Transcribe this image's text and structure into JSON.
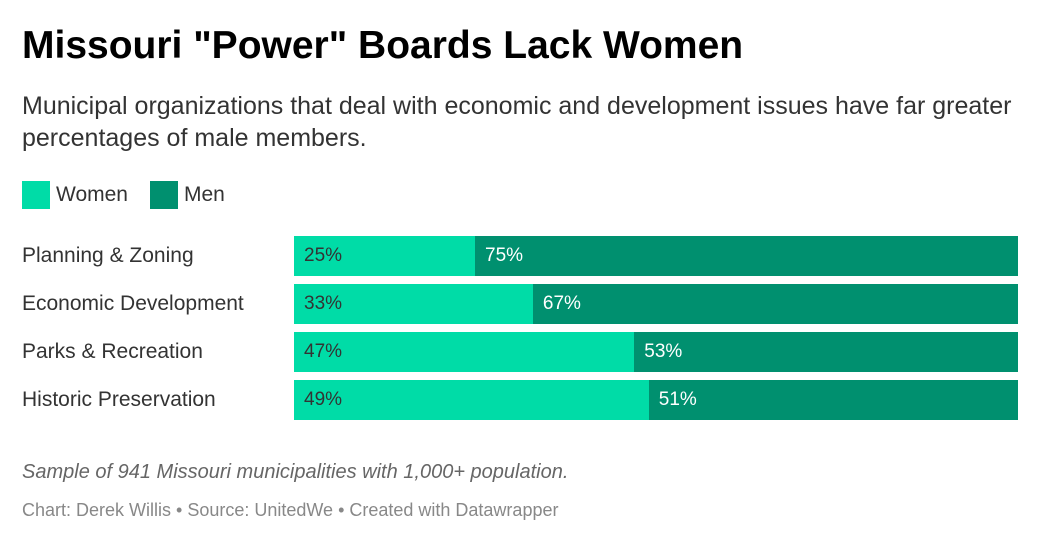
{
  "chart_data": {
    "type": "bar",
    "orientation": "horizontal",
    "stacked": true,
    "percent_stacked": true,
    "title": "Missouri \"Power\" Boards Lack Women",
    "subtitle": "Municipal organizations that deal with economic and development issues have far greater percentages of male members.",
    "categories": [
      "Planning & Zoning",
      "Economic Development",
      "Parks & Recreation",
      "Historic Preservation"
    ],
    "series": [
      {
        "name": "Women",
        "color": "#00dca7",
        "values": [
          25,
          33,
          47,
          49
        ],
        "labels": [
          "25%",
          "33%",
          "47%",
          "49%"
        ]
      },
      {
        "name": "Men",
        "color": "#00906f",
        "values": [
          75,
          67,
          53,
          51
        ],
        "labels": [
          "75%",
          "67%",
          "53%",
          "51%"
        ]
      }
    ],
    "xlim": [
      0,
      100
    ],
    "grid": false,
    "legend_position": "top-left",
    "note": "Sample of 941 Missouri municipalities with 1,000+ population.",
    "footer": "Chart: Derek Willis • Source: UnitedWe • Created with Datawrapper"
  }
}
